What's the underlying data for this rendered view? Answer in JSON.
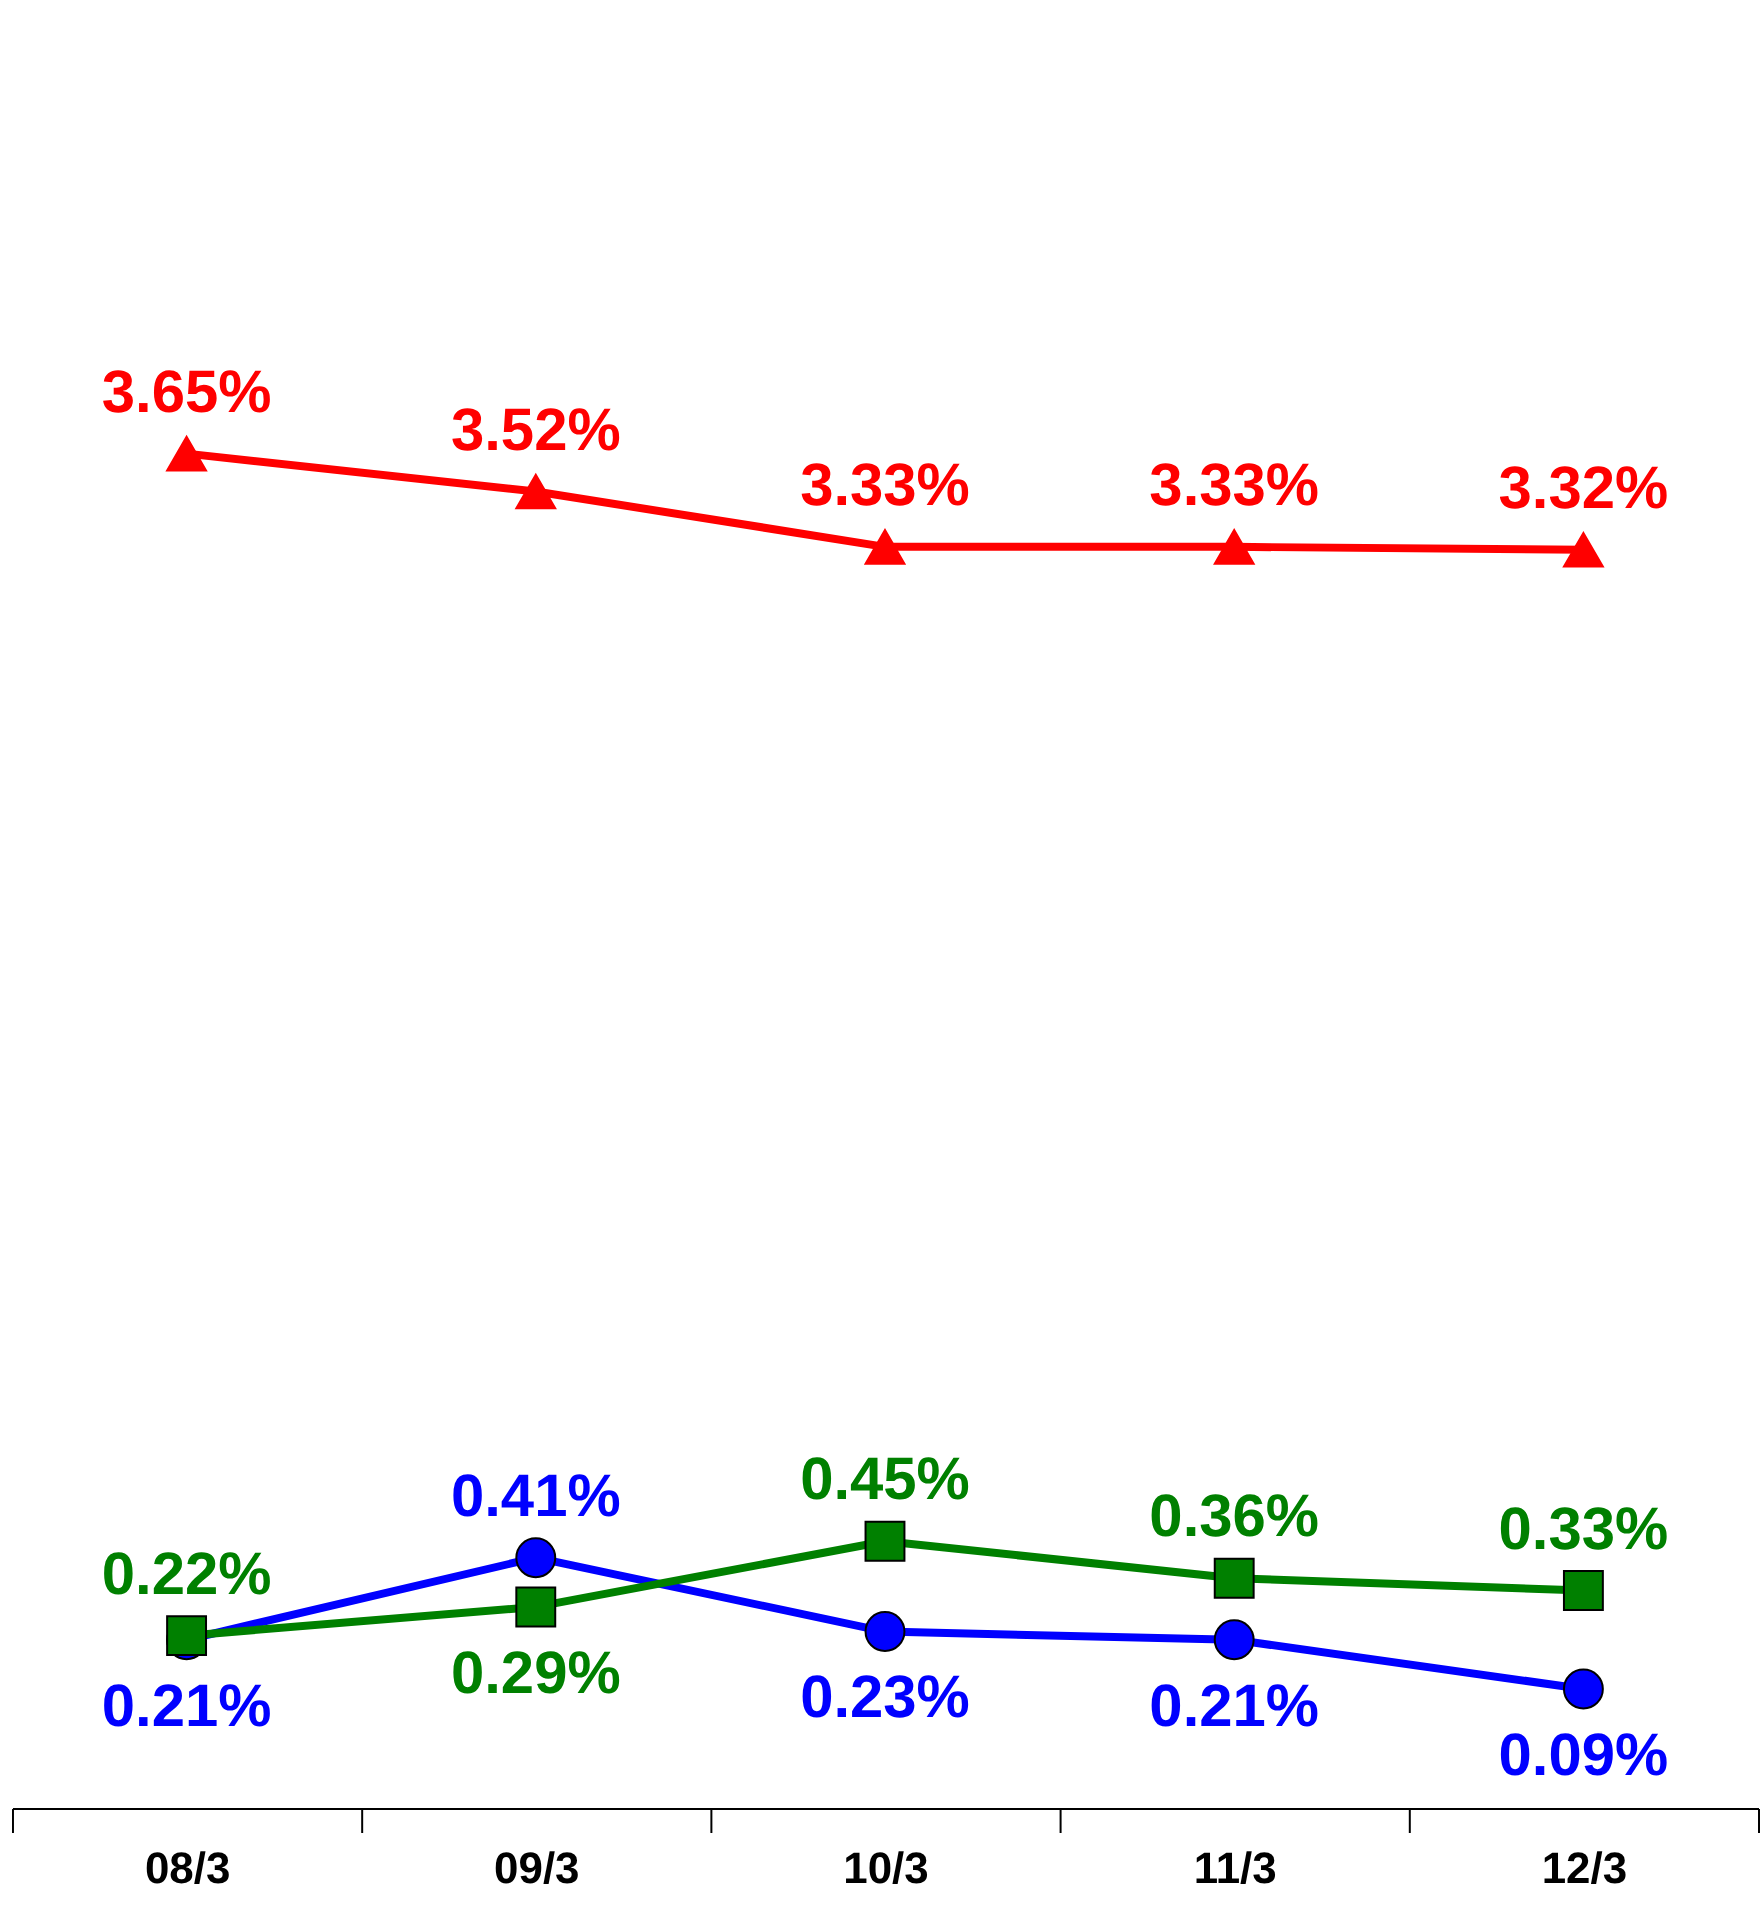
{
  "chart_data": {
    "type": "line",
    "categories": [
      "08/3",
      "09/3",
      "10/3",
      "11/3",
      "12/3"
    ],
    "tick_labels": "x",
    "grid": false,
    "ylim": [
      -0.2,
      4.2
    ],
    "y2lim": [
      -1,
      5.2
    ],
    "series": [
      {
        "color": "#ff0000",
        "axis": "y2",
        "marker": "triangle",
        "values": [
          3.65,
          3.52,
          3.33,
          3.33,
          3.32
        ],
        "value_labels": [
          "3.65%",
          "3.52%",
          "3.33%",
          "3.33%",
          "3.32%"
        ]
      },
      {
        "color": "#0000ff",
        "marker": "circle",
        "values": [
          0.21,
          0.41,
          0.23,
          0.21,
          0.09
        ],
        "value_labels": [
          "0.21%",
          "0.41%",
          "0.23%",
          "0.21%",
          "0.09%"
        ]
      },
      {
        "color": "#008000",
        "marker": "square",
        "values": [
          0.22,
          0.29,
          0.45,
          0.36,
          0.33
        ],
        "value_labels": [
          "0.22%",
          "0.29%",
          "0.45%",
          "0.36%",
          "0.33%"
        ]
      }
    ]
  }
}
